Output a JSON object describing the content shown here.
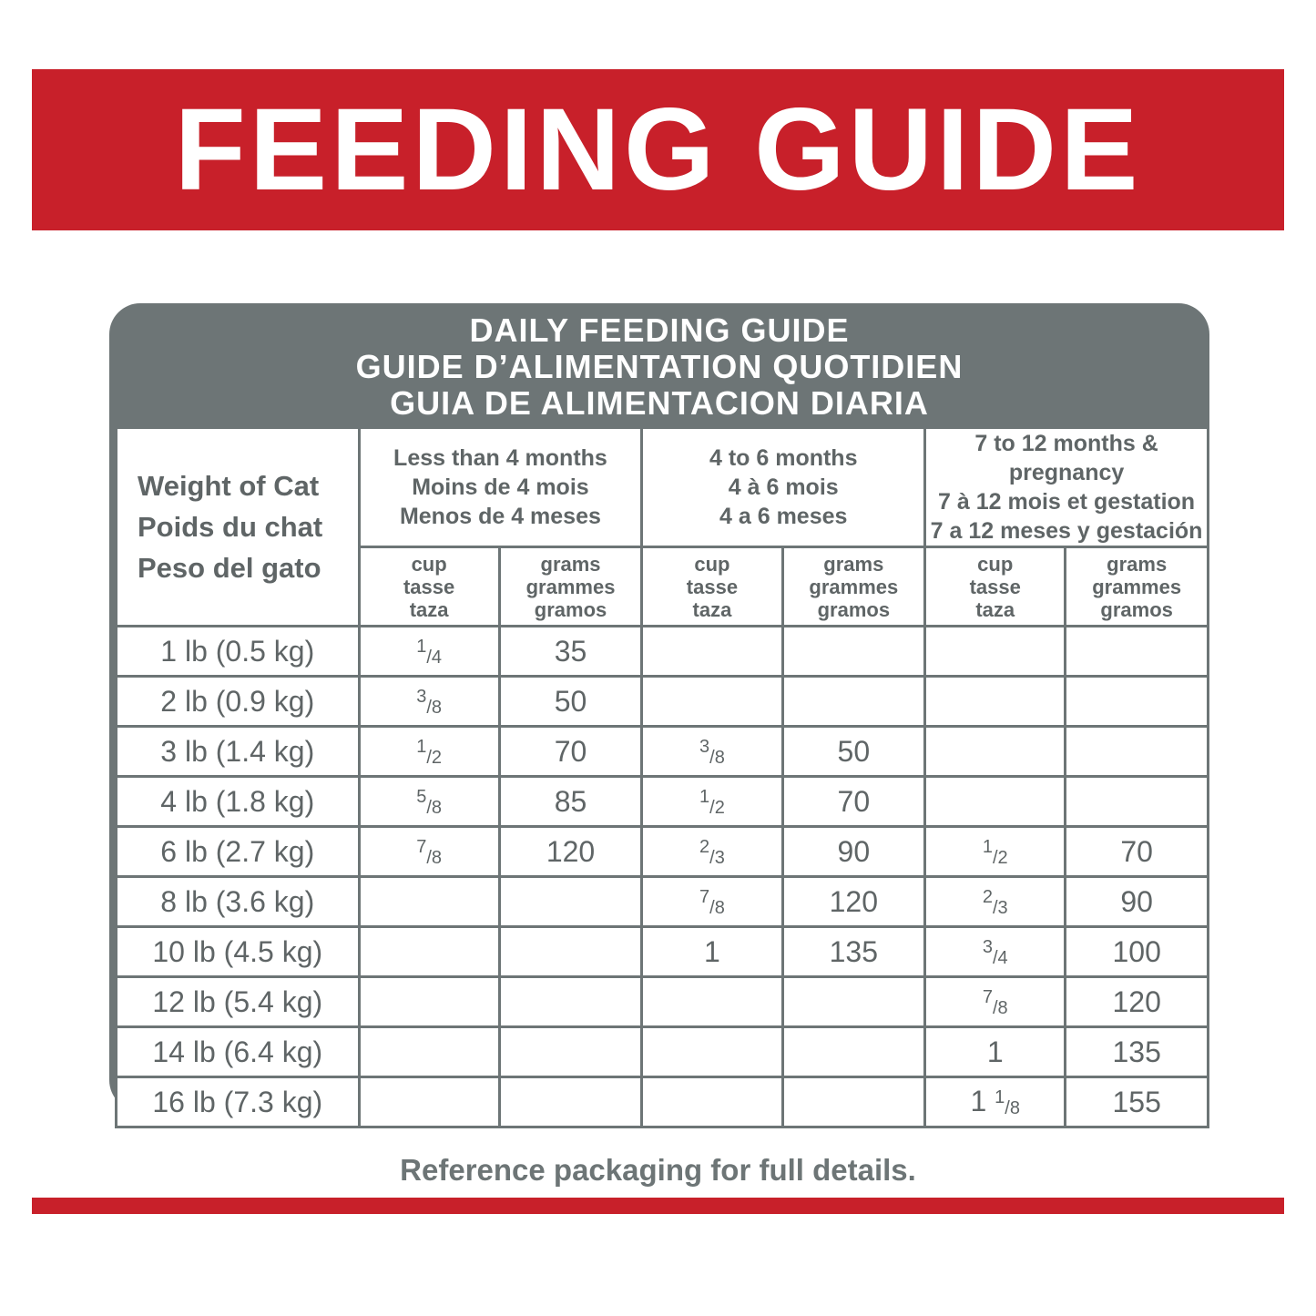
{
  "banner": {
    "title": "FEEDING GUIDE"
  },
  "table": {
    "title": [
      "DAILY FEEDING GUIDE",
      "GUIDE D’ALIMENTATION QUOTIDIEN",
      "GUIA DE ALIMENTACION DIARIA"
    ],
    "weight_header": [
      "Weight of Cat",
      "Poids du chat",
      "Peso del gato"
    ],
    "groups": [
      [
        "Less than 4 months",
        "Moins de 4 mois",
        "Menos de 4 meses"
      ],
      [
        "4 to 6 months",
        "4 à 6 mois",
        "4 a 6 meses"
      ],
      [
        "7 to 12 months & pregnancy",
        "7 à 12 mois et gestation",
        "7 a 12 meses y gestación"
      ]
    ],
    "units": {
      "cup": [
        "cup",
        "tasse",
        "taza"
      ],
      "grams": [
        "grams",
        "grammes",
        "gramos"
      ]
    },
    "rows": [
      [
        "1 lb (0.5 kg)",
        "1/4",
        35,
        null,
        null,
        null,
        null
      ],
      [
        "2 lb (0.9 kg)",
        "3/8",
        50,
        null,
        null,
        null,
        null
      ],
      [
        "3 lb (1.4 kg)",
        "1/2",
        70,
        "3/8",
        50,
        null,
        null
      ],
      [
        "4 lb (1.8 kg)",
        "5/8",
        85,
        "1/2",
        70,
        null,
        null
      ],
      [
        "6 lb (2.7 kg)",
        "7/8",
        120,
        "2/3",
        90,
        "1/2",
        70
      ],
      [
        "8 lb (3.6 kg)",
        null,
        null,
        "7/8",
        120,
        "2/3",
        90
      ],
      [
        "10 lb (4.5 kg)",
        null,
        null,
        "1",
        135,
        "3/4",
        100
      ],
      [
        "12 lb (5.4 kg)",
        null,
        null,
        null,
        null,
        "7/8",
        120
      ],
      [
        "14 lb (6.4 kg)",
        null,
        null,
        null,
        null,
        "1",
        135
      ],
      [
        "16 lb (7.3 kg)",
        null,
        null,
        null,
        null,
        "1 1/8",
        155
      ]
    ]
  },
  "footer": {
    "note": "Reference packaging for full details."
  }
}
